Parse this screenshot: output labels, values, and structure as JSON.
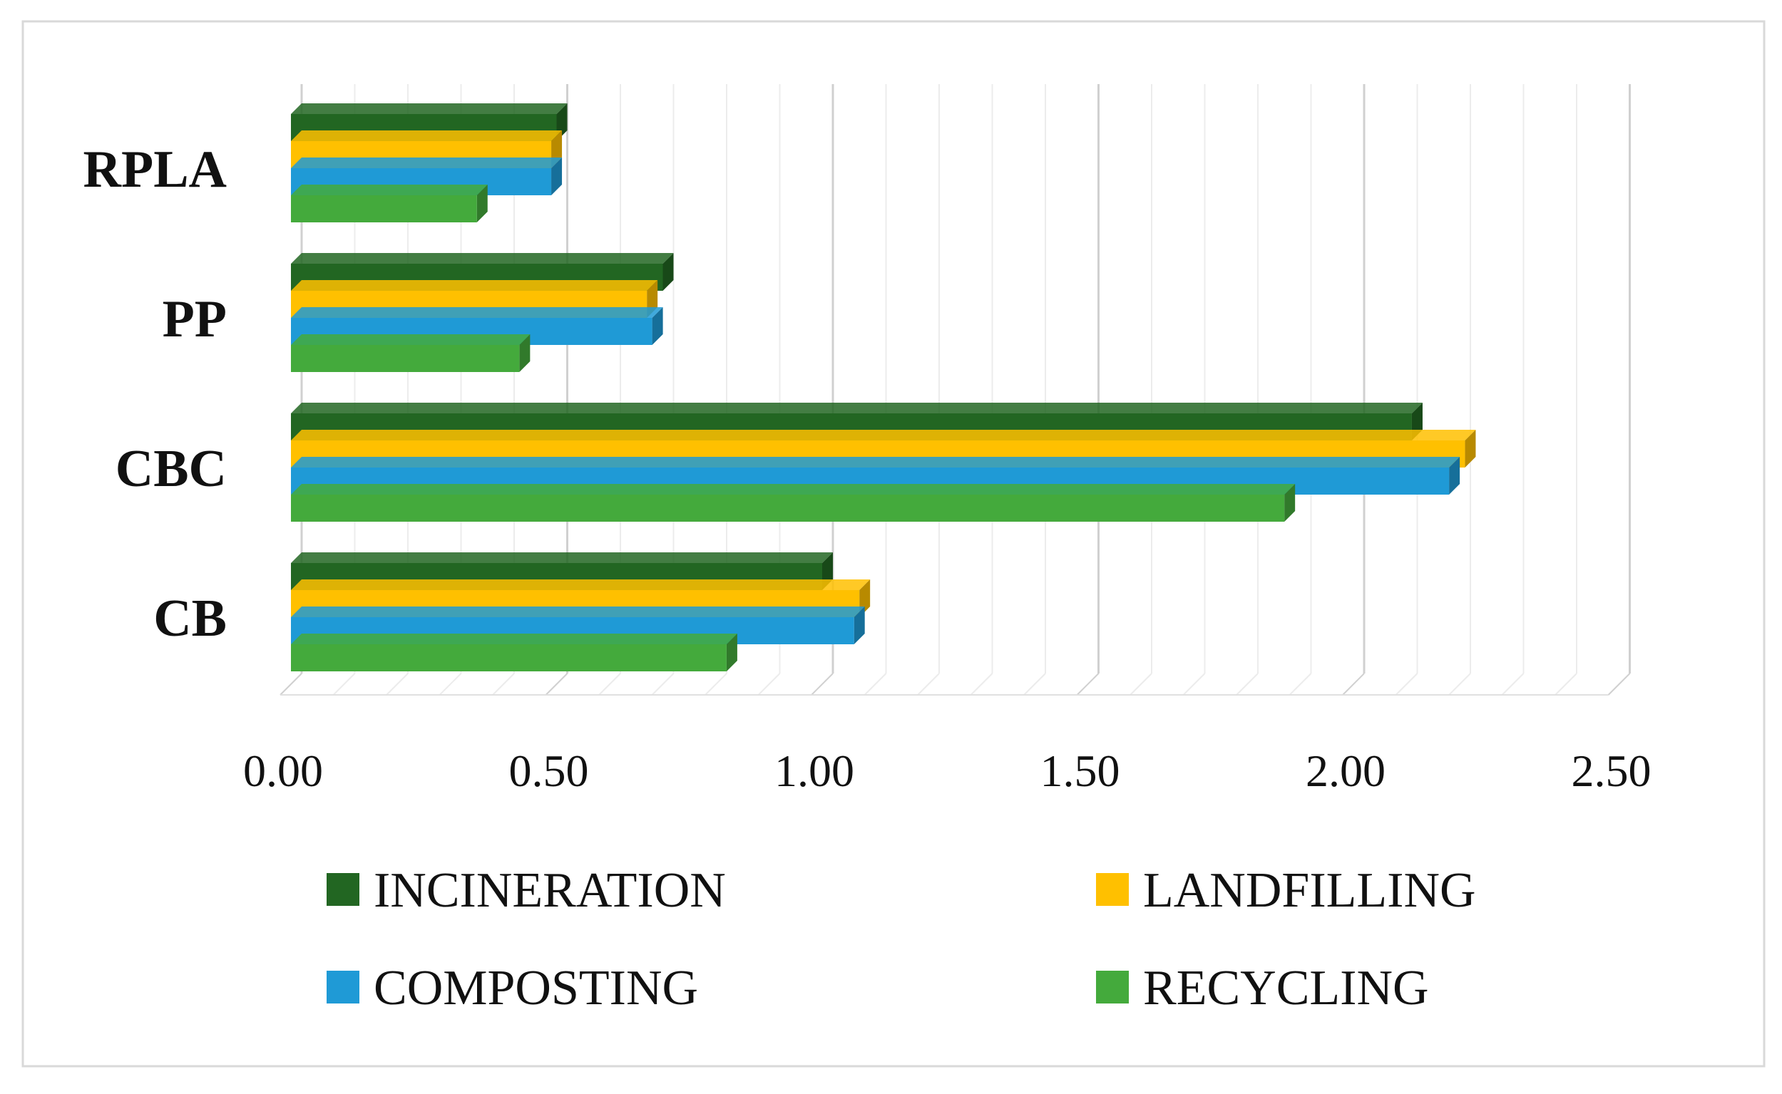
{
  "chart_data": {
    "type": "bar",
    "orientation": "horizontal",
    "style": "3d",
    "title": "",
    "xlabel": "",
    "ylabel": "",
    "categories": [
      "RPLA",
      "PP",
      "CBC",
      "CB"
    ],
    "series": [
      {
        "name": "INCINERATION",
        "color": "#226622",
        "values": [
          0.5,
          0.7,
          2.11,
          1.0
        ]
      },
      {
        "name": "LANDFILLING",
        "color": "#ffc000",
        "values": [
          0.49,
          0.67,
          2.21,
          1.07
        ]
      },
      {
        "name": "COMPOSTING",
        "color": "#1f9ad6",
        "values": [
          0.49,
          0.68,
          2.18,
          1.06
        ]
      },
      {
        "name": "RECYCLING",
        "color": "#44aa3c",
        "values": [
          0.35,
          0.43,
          1.87,
          0.82
        ]
      }
    ],
    "xlim": [
      0,
      2.5
    ],
    "x_ticks": [
      "0.00",
      "0.50",
      "1.00",
      "1.50",
      "2.00",
      "2.50"
    ],
    "grid": true,
    "legend_position": "bottom"
  }
}
